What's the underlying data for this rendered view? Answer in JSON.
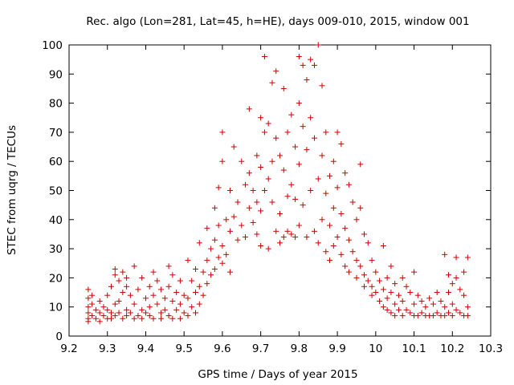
{
  "chart_data": {
    "type": "scatter",
    "title": "Rec. algo (Lon=281, Lat=45, h=HE), days 009-010, 2015, window 001",
    "xlabel": "GPS time / Days of year 2015",
    "ylabel": "STEC from uqrg / TECUs",
    "xlim": [
      9.2,
      10.3
    ],
    "ylim": [
      0,
      100
    ],
    "xticks": [
      "9.2",
      "9.3",
      "9.4",
      "9.5",
      "9.6",
      "9.7",
      "9.8",
      "9.9",
      "10",
      "10.1",
      "10.2",
      "10.3"
    ],
    "yticks": [
      "0",
      "10",
      "20",
      "30",
      "40",
      "50",
      "60",
      "70",
      "80",
      "90",
      "100"
    ],
    "xtick_values": [
      9.2,
      9.3,
      9.4,
      9.5,
      9.6,
      9.7,
      9.8,
      9.9,
      10.0,
      10.1,
      10.2,
      10.3
    ],
    "ytick_values": [
      0,
      10,
      20,
      30,
      40,
      50,
      60,
      70,
      80,
      90,
      100
    ],
    "grid": false,
    "marker": "plus",
    "colors": {
      "series": "#cc0000",
      "axis": "#000000"
    },
    "series": [
      {
        "name": "",
        "points": [
          [
            9.25,
            16
          ],
          [
            9.25,
            13
          ],
          [
            9.25,
            10
          ],
          [
            9.25,
            8
          ],
          [
            9.25,
            6
          ],
          [
            9.25,
            5
          ],
          [
            9.26,
            14
          ],
          [
            9.26,
            11
          ],
          [
            9.26,
            7
          ],
          [
            9.27,
            9
          ],
          [
            9.27,
            6
          ],
          [
            9.28,
            12
          ],
          [
            9.28,
            8
          ],
          [
            9.28,
            5
          ],
          [
            9.29,
            10
          ],
          [
            9.29,
            7
          ],
          [
            9.3,
            14
          ],
          [
            9.3,
            9
          ],
          [
            9.3,
            6
          ],
          [
            9.31,
            17
          ],
          [
            9.31,
            8
          ],
          [
            9.31,
            6
          ],
          [
            9.32,
            23
          ],
          [
            9.32,
            21
          ],
          [
            9.32,
            11
          ],
          [
            9.32,
            7
          ],
          [
            9.33,
            19
          ],
          [
            9.33,
            12
          ],
          [
            9.33,
            8
          ],
          [
            9.34,
            22
          ],
          [
            9.34,
            15
          ],
          [
            9.34,
            6
          ],
          [
            9.35,
            20
          ],
          [
            9.35,
            17
          ],
          [
            9.35,
            9
          ],
          [
            9.35,
            7
          ],
          [
            9.36,
            14
          ],
          [
            9.36,
            8
          ],
          [
            9.37,
            24
          ],
          [
            9.37,
            11
          ],
          [
            9.37,
            6
          ],
          [
            9.38,
            16
          ],
          [
            9.38,
            7
          ],
          [
            9.39,
            20
          ],
          [
            9.39,
            9
          ],
          [
            9.39,
            6
          ],
          [
            9.4,
            13
          ],
          [
            9.4,
            8
          ],
          [
            9.41,
            17
          ],
          [
            9.41,
            10
          ],
          [
            9.41,
            7
          ],
          [
            9.42,
            22
          ],
          [
            9.42,
            14
          ],
          [
            9.42,
            6
          ],
          [
            9.43,
            19
          ],
          [
            9.43,
            11
          ],
          [
            9.44,
            16
          ],
          [
            9.44,
            8
          ],
          [
            9.44,
            6
          ],
          [
            9.45,
            13
          ],
          [
            9.45,
            9
          ],
          [
            9.46,
            24
          ],
          [
            9.46,
            17
          ],
          [
            9.46,
            7
          ],
          [
            9.47,
            21
          ],
          [
            9.47,
            12
          ],
          [
            9.47,
            6
          ],
          [
            9.48,
            15
          ],
          [
            9.48,
            9
          ],
          [
            9.49,
            19
          ],
          [
            9.49,
            11
          ],
          [
            9.49,
            6
          ],
          [
            9.5,
            14
          ],
          [
            9.5,
            8
          ],
          [
            9.51,
            26
          ],
          [
            9.51,
            13
          ],
          [
            9.51,
            7
          ],
          [
            9.52,
            19
          ],
          [
            9.52,
            10
          ],
          [
            9.53,
            23
          ],
          [
            9.53,
            15
          ],
          [
            9.53,
            8
          ],
          [
            9.54,
            32
          ],
          [
            9.54,
            17
          ],
          [
            9.54,
            11
          ],
          [
            9.55,
            22
          ],
          [
            9.55,
            14
          ],
          [
            9.56,
            37
          ],
          [
            9.56,
            26
          ],
          [
            9.56,
            18
          ],
          [
            9.57,
            30
          ],
          [
            9.57,
            21
          ],
          [
            9.58,
            44
          ],
          [
            9.58,
            33
          ],
          [
            9.58,
            23
          ],
          [
            9.59,
            51
          ],
          [
            9.59,
            38
          ],
          [
            9.59,
            27
          ],
          [
            9.6,
            70
          ],
          [
            9.6,
            60
          ],
          [
            9.6,
            31
          ],
          [
            9.6,
            25
          ],
          [
            9.61,
            40
          ],
          [
            9.61,
            28
          ],
          [
            9.62,
            50
          ],
          [
            9.62,
            36
          ],
          [
            9.62,
            22
          ],
          [
            9.63,
            65
          ],
          [
            9.63,
            41
          ],
          [
            9.64,
            46
          ],
          [
            9.64,
            33
          ],
          [
            9.65,
            60
          ],
          [
            9.65,
            38
          ],
          [
            9.66,
            52
          ],
          [
            9.66,
            34
          ],
          [
            9.67,
            78
          ],
          [
            9.67,
            56
          ],
          [
            9.67,
            44
          ],
          [
            9.68,
            50
          ],
          [
            9.68,
            39
          ],
          [
            9.69,
            62
          ],
          [
            9.69,
            46
          ],
          [
            9.69,
            35
          ],
          [
            9.7,
            75
          ],
          [
            9.7,
            58
          ],
          [
            9.7,
            43
          ],
          [
            9.7,
            31
          ],
          [
            9.71,
            96
          ],
          [
            9.71,
            70
          ],
          [
            9.71,
            50
          ],
          [
            9.72,
            73
          ],
          [
            9.72,
            54
          ],
          [
            9.72,
            30
          ],
          [
            9.73,
            87
          ],
          [
            9.73,
            60
          ],
          [
            9.73,
            46
          ],
          [
            9.74,
            91
          ],
          [
            9.74,
            68
          ],
          [
            9.74,
            36
          ],
          [
            9.75,
            62
          ],
          [
            9.75,
            42
          ],
          [
            9.75,
            32
          ],
          [
            9.76,
            85
          ],
          [
            9.76,
            57
          ],
          [
            9.76,
            34
          ],
          [
            9.77,
            70
          ],
          [
            9.77,
            48
          ],
          [
            9.77,
            36
          ],
          [
            9.78,
            76
          ],
          [
            9.78,
            52
          ],
          [
            9.78,
            35
          ],
          [
            9.79,
            65
          ],
          [
            9.79,
            47
          ],
          [
            9.79,
            34
          ],
          [
            9.8,
            96
          ],
          [
            9.8,
            80
          ],
          [
            9.8,
            59
          ],
          [
            9.8,
            38
          ],
          [
            9.81,
            93
          ],
          [
            9.81,
            72
          ],
          [
            9.81,
            45
          ],
          [
            9.82,
            88
          ],
          [
            9.82,
            64
          ],
          [
            9.82,
            34
          ],
          [
            9.83,
            95
          ],
          [
            9.83,
            75
          ],
          [
            9.83,
            50
          ],
          [
            9.84,
            93
          ],
          [
            9.84,
            68
          ],
          [
            9.84,
            36
          ],
          [
            9.85,
            100
          ],
          [
            9.85,
            54
          ],
          [
            9.85,
            32
          ],
          [
            9.86,
            86
          ],
          [
            9.86,
            62
          ],
          [
            9.86,
            40
          ],
          [
            9.87,
            70
          ],
          [
            9.87,
            49
          ],
          [
            9.87,
            29
          ],
          [
            9.88,
            55
          ],
          [
            9.88,
            38
          ],
          [
            9.88,
            26
          ],
          [
            9.89,
            60
          ],
          [
            9.89,
            44
          ],
          [
            9.89,
            31
          ],
          [
            9.9,
            70
          ],
          [
            9.9,
            51
          ],
          [
            9.9,
            34
          ],
          [
            9.91,
            66
          ],
          [
            9.91,
            42
          ],
          [
            9.91,
            28
          ],
          [
            9.92,
            56
          ],
          [
            9.92,
            37
          ],
          [
            9.92,
            24
          ],
          [
            9.93,
            52
          ],
          [
            9.93,
            33
          ],
          [
            9.93,
            22
          ],
          [
            9.94,
            46
          ],
          [
            9.94,
            29
          ],
          [
            9.95,
            40
          ],
          [
            9.95,
            26
          ],
          [
            9.95,
            20
          ],
          [
            9.96,
            59
          ],
          [
            9.96,
            44
          ],
          [
            9.96,
            24
          ],
          [
            9.97,
            35
          ],
          [
            9.97,
            21
          ],
          [
            9.97,
            17
          ],
          [
            9.98,
            32
          ],
          [
            9.98,
            19
          ],
          [
            9.99,
            26
          ],
          [
            9.99,
            17
          ],
          [
            9.99,
            14
          ],
          [
            10.0,
            22
          ],
          [
            10.0,
            15
          ],
          [
            10.01,
            19
          ],
          [
            10.01,
            12
          ],
          [
            10.02,
            31
          ],
          [
            10.02,
            16
          ],
          [
            10.02,
            10
          ],
          [
            10.03,
            20
          ],
          [
            10.03,
            13
          ],
          [
            10.03,
            9
          ],
          [
            10.04,
            24
          ],
          [
            10.04,
            15
          ],
          [
            10.04,
            8
          ],
          [
            10.05,
            18
          ],
          [
            10.05,
            11
          ],
          [
            10.05,
            7
          ],
          [
            10.06,
            14
          ],
          [
            10.06,
            9
          ],
          [
            10.07,
            20
          ],
          [
            10.07,
            12
          ],
          [
            10.07,
            7
          ],
          [
            10.08,
            17
          ],
          [
            10.08,
            9
          ],
          [
            10.09,
            15
          ],
          [
            10.09,
            8
          ],
          [
            10.1,
            22
          ],
          [
            10.1,
            11
          ],
          [
            10.1,
            7
          ],
          [
            10.11,
            14
          ],
          [
            10.11,
            7
          ],
          [
            10.12,
            12
          ],
          [
            10.12,
            8
          ],
          [
            10.13,
            10
          ],
          [
            10.13,
            7
          ],
          [
            10.14,
            13
          ],
          [
            10.14,
            7
          ],
          [
            10.15,
            11
          ],
          [
            10.15,
            7
          ],
          [
            10.16,
            15
          ],
          [
            10.16,
            8
          ],
          [
            10.17,
            12
          ],
          [
            10.17,
            7
          ],
          [
            10.18,
            28
          ],
          [
            10.18,
            10
          ],
          [
            10.18,
            7
          ],
          [
            10.19,
            21
          ],
          [
            10.19,
            15
          ],
          [
            10.19,
            8
          ],
          [
            10.2,
            18
          ],
          [
            10.2,
            11
          ],
          [
            10.2,
            7
          ],
          [
            10.21,
            27
          ],
          [
            10.21,
            20
          ],
          [
            10.21,
            9
          ],
          [
            10.22,
            16
          ],
          [
            10.22,
            8
          ],
          [
            10.23,
            22
          ],
          [
            10.23,
            14
          ],
          [
            10.23,
            7
          ],
          [
            10.24,
            27
          ],
          [
            10.24,
            10
          ],
          [
            10.24,
            7
          ]
        ]
      }
    ]
  }
}
